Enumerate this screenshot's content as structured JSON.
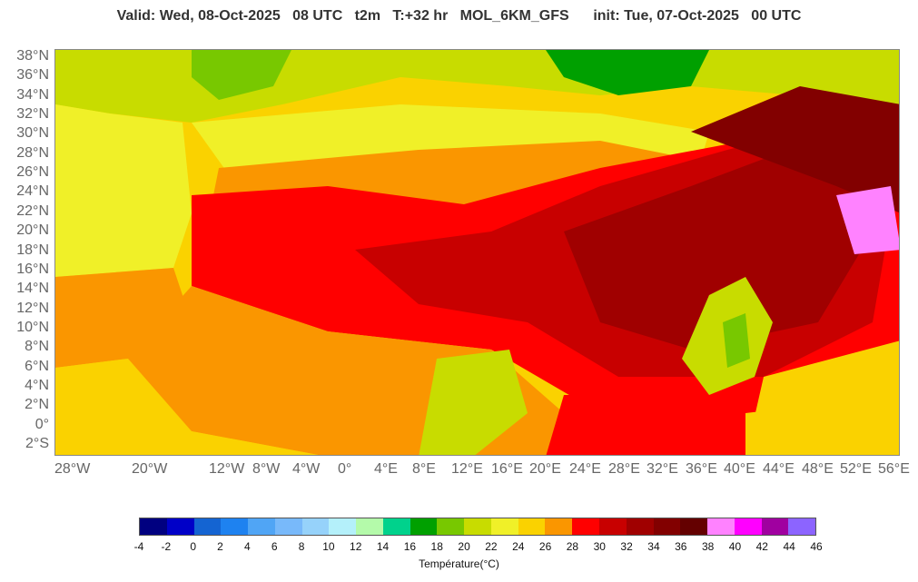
{
  "header": {
    "title": "Valid: Wed, 08-Oct-2025   08 UTC   t2m   T:+32 hr   MOL_6KM_GFS      init: Tue, 07-Oct-2025   00 UTC"
  },
  "map": {
    "lat_labels": [
      "38°N",
      "36°N",
      "34°N",
      "32°N",
      "30°N",
      "28°N",
      "26°N",
      "24°N",
      "22°N",
      "20°N",
      "18°N",
      "16°N",
      "14°N",
      "12°N",
      "10°N",
      "8°N",
      "6°N",
      "4°N",
      "2°N",
      "0°",
      "2°S"
    ],
    "lon_labels": [
      "28°W",
      "20°W",
      "12°W",
      "8°W",
      "4°W",
      "0°",
      "4°E",
      "8°E",
      "12°E",
      "16°E",
      "20°E",
      "24°E",
      "28°E",
      "32°E",
      "36°E",
      "40°E",
      "44°E",
      "48°E",
      "52°E",
      "56°E"
    ],
    "lat_range": [
      -3.0,
      38.6
    ],
    "lon_range": [
      -31.0,
      57.5
    ]
  },
  "legend": {
    "tick_labels": [
      "-4",
      "-2",
      "0",
      "2",
      "4",
      "6",
      "8",
      "10",
      "12",
      "14",
      "16",
      "18",
      "20",
      "22",
      "24",
      "26",
      "28",
      "30",
      "32",
      "34",
      "36",
      "38",
      "40",
      "42",
      "44",
      "46"
    ],
    "colors": [
      "#000080",
      "#0000c8",
      "#1464d2",
      "#1e82f0",
      "#50a5f5",
      "#78b9fa",
      "#96d2fa",
      "#b4f0fa",
      "#b4faaa",
      "#00d28c",
      "#00a000",
      "#78c800",
      "#c8dc00",
      "#f0f028",
      "#fad200",
      "#fa9600",
      "#ff0000",
      "#c80000",
      "#a00000",
      "#820000",
      "#640000",
      "#ff82ff",
      "#ff00ff",
      "#a000a0",
      "#8c64ff"
    ],
    "unit_label": "Température(°C)"
  }
}
